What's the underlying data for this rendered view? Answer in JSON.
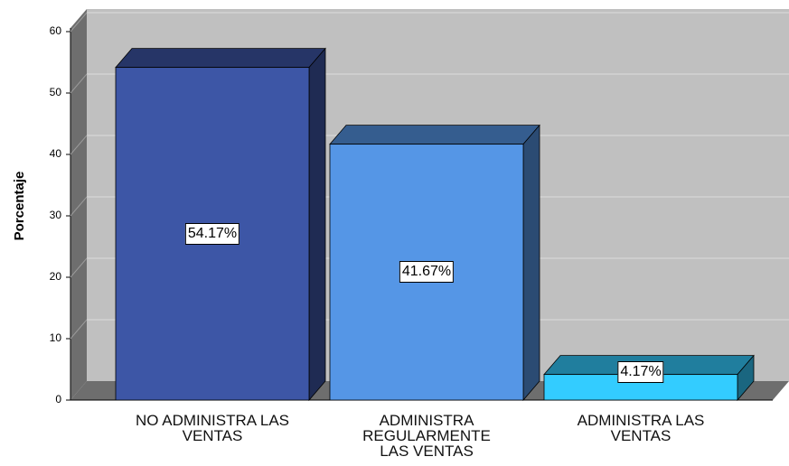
{
  "chart_data": {
    "type": "bar3d",
    "y_label": "Porcentaje",
    "categories": [
      "NO ADMINISTRA LAS\nVENTAS",
      "ADMINISTRA\nREGULARMENTE\nLAS VENTAS",
      "ADMINISTRA LAS\nVENTAS"
    ],
    "values": [
      54.17,
      41.67,
      4.17
    ],
    "value_labels": [
      "54.17%",
      "41.67%",
      "4.17%"
    ],
    "colors": [
      "#3d56a6",
      "#5596e6",
      "#33ccff"
    ],
    "ylim": [
      0,
      60
    ],
    "yticks": [
      0,
      10,
      20,
      30,
      40,
      50,
      60
    ],
    "grid": true
  }
}
